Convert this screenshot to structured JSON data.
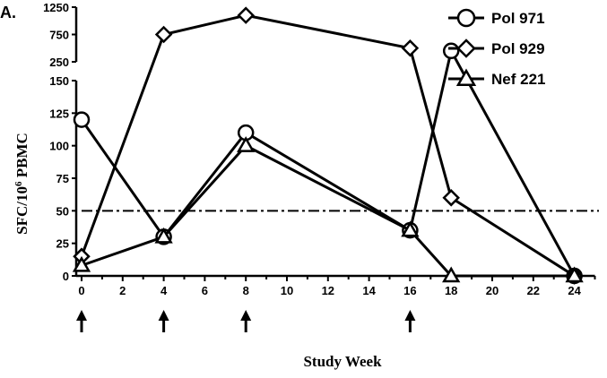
{
  "chart_data": {
    "type": "line",
    "panel_label": "A.",
    "xlabel": "Study Week",
    "ylabel_parts": [
      "SFC/10",
      "6",
      " PBMC"
    ],
    "x_ticks": [
      0,
      2,
      4,
      6,
      8,
      10,
      12,
      14,
      16,
      18,
      20,
      22,
      24
    ],
    "x_range": [
      0,
      25
    ],
    "y_lower_ticks": [
      0,
      25,
      50,
      75,
      100,
      125,
      150
    ],
    "y_lower_range": [
      0,
      150
    ],
    "y_upper_ticks": [
      250,
      750,
      1250
    ],
    "y_upper_range": [
      250,
      1250
    ],
    "threshold": 50,
    "arrow_weeks": [
      0,
      4,
      8,
      16
    ],
    "legend_position": "top-right",
    "series": [
      {
        "name": "Pol 971",
        "marker": "circle",
        "x": [
          0,
          4,
          8,
          16,
          18,
          24
        ],
        "y": [
          120,
          30,
          110,
          35,
          450,
          0
        ]
      },
      {
        "name": "Pol 929",
        "marker": "diamond",
        "x": [
          0,
          4,
          8,
          16,
          18,
          24
        ],
        "y": [
          15,
          750,
          1100,
          500,
          60,
          0
        ]
      },
      {
        "name": "Nef 221",
        "marker": "triangle",
        "x": [
          0,
          4,
          8,
          16,
          18,
          24
        ],
        "y": [
          8,
          30,
          100,
          35,
          0,
          0
        ]
      }
    ]
  }
}
